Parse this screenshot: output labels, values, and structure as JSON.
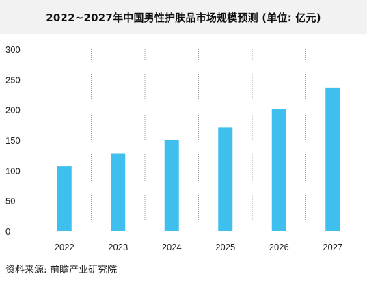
{
  "chart_data": {
    "type": "bar",
    "title": "2022~2027年中国男性护肤品市场规模预测 (单位: 亿元)",
    "categories": [
      "2022",
      "2023",
      "2024",
      "2025",
      "2026",
      "2027"
    ],
    "values": [
      107,
      128,
      150,
      171,
      201,
      237
    ],
    "ylim": [
      0,
      300
    ],
    "yticks": [
      0,
      50,
      100,
      150,
      200,
      250,
      300
    ],
    "xlabel": "",
    "ylabel": "",
    "grid": "vertical-dotted-between-categories",
    "bar_color": "#3fbfee"
  },
  "source_text": "资料来源: 前瞻产业研究院"
}
